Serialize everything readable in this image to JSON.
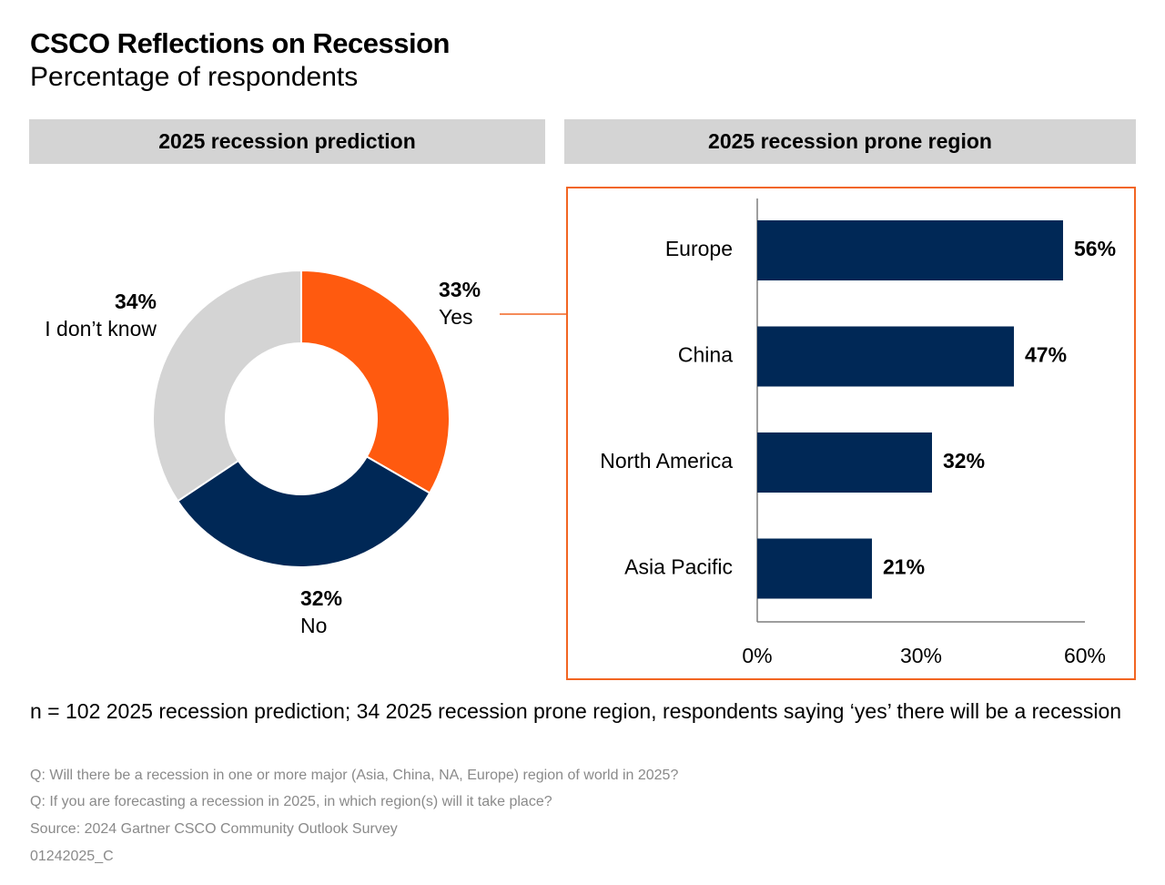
{
  "header": {
    "title": "CSCO Reflections on Recession",
    "subtitle": "Percentage of respondents"
  },
  "panels": {
    "left_title": "2025 recession prediction",
    "right_title": "2025 recession prone region"
  },
  "chart_data": [
    {
      "type": "pie",
      "variant": "donut",
      "title": "2025 recession prediction",
      "slices": [
        {
          "label": "Yes",
          "value": 33,
          "value_label": "33%",
          "color": "#ff5a0f"
        },
        {
          "label": "No",
          "value": 32,
          "value_label": "32%",
          "color": "#002856"
        },
        {
          "label": "I don’t know",
          "value": 34,
          "value_label": "34%",
          "color": "#d4d4d4"
        }
      ]
    },
    {
      "type": "bar",
      "orientation": "horizontal",
      "title": "2025 recession prone region",
      "categories": [
        "Europe",
        "China",
        "North America",
        "Asia Pacific"
      ],
      "values": [
        56,
        47,
        32,
        21
      ],
      "value_labels": [
        "56%",
        "47%",
        "32%",
        "21%"
      ],
      "xlim": [
        0,
        60
      ],
      "xticks": [
        "0%",
        "30%",
        "60%"
      ],
      "bar_color": "#002856",
      "frame_color": "#f26522",
      "grid": false
    }
  ],
  "footer": {
    "note": "n = 102 2025 recession prediction; 34 2025 recession prone region, respondents saying ‘yes’ there will be a recession",
    "q1": "Q: Will there be a recession in one or more major (Asia, China, NA, Europe) region of world in 2025?",
    "q2": "Q: If you are forecasting a recession in 2025, in which region(s) will it take place?",
    "source": "Source: 2024 Gartner CSCO Community Outlook Survey",
    "code": "01242025_C"
  }
}
